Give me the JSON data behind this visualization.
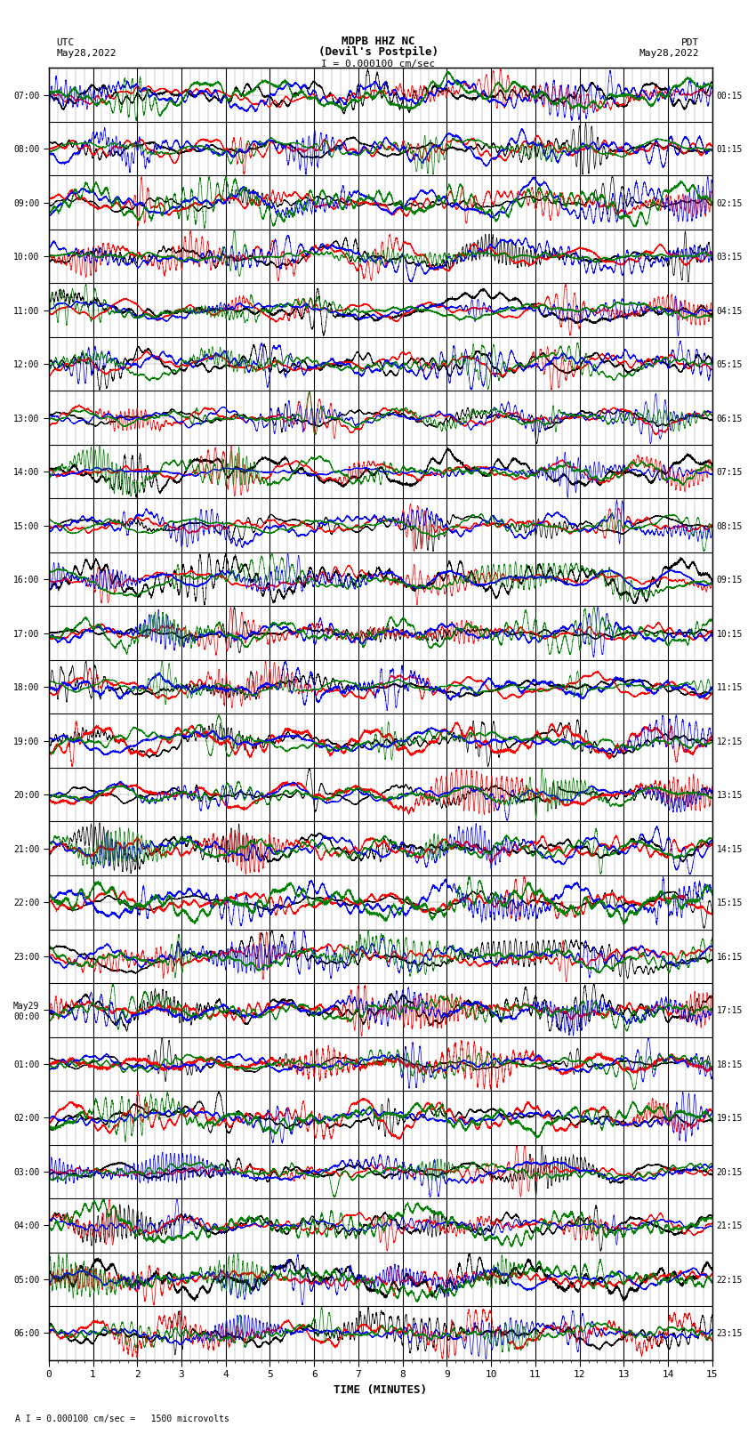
{
  "title_line1": "MDPB HHZ NC",
  "title_line2": "(Devil's Postpile)",
  "scale_label": "I = 0.000100 cm/sec",
  "footer_label": "A I = 0.000100 cm/sec =   1500 microvolts",
  "xlabel": "TIME (MINUTES)",
  "left_label_line1": "UTC",
  "left_label_line2": "May28,2022",
  "right_label_line1": "PDT",
  "right_label_line2": "May28,2022",
  "utc_times": [
    "07:00",
    "08:00",
    "09:00",
    "10:00",
    "11:00",
    "12:00",
    "13:00",
    "14:00",
    "15:00",
    "16:00",
    "17:00",
    "18:00",
    "19:00",
    "20:00",
    "21:00",
    "22:00",
    "23:00",
    "May29\n00:00",
    "01:00",
    "02:00",
    "03:00",
    "04:00",
    "05:00",
    "06:00"
  ],
  "pdt_times": [
    "00:15",
    "01:15",
    "02:15",
    "03:15",
    "04:15",
    "05:15",
    "06:15",
    "07:15",
    "08:15",
    "09:15",
    "10:15",
    "11:15",
    "12:15",
    "13:15",
    "14:15",
    "15:15",
    "16:15",
    "17:15",
    "18:15",
    "19:15",
    "20:15",
    "21:15",
    "22:15",
    "23:15"
  ],
  "n_rows": 24,
  "n_minutes": 15,
  "trace_colors": [
    "black",
    "red",
    "blue",
    "green"
  ],
  "background_color": "white",
  "grid_major_color": "#000000",
  "grid_minor_color": "#888888",
  "linewidth": 0.5,
  "figsize": [
    8.5,
    16.13
  ],
  "dpi": 100
}
